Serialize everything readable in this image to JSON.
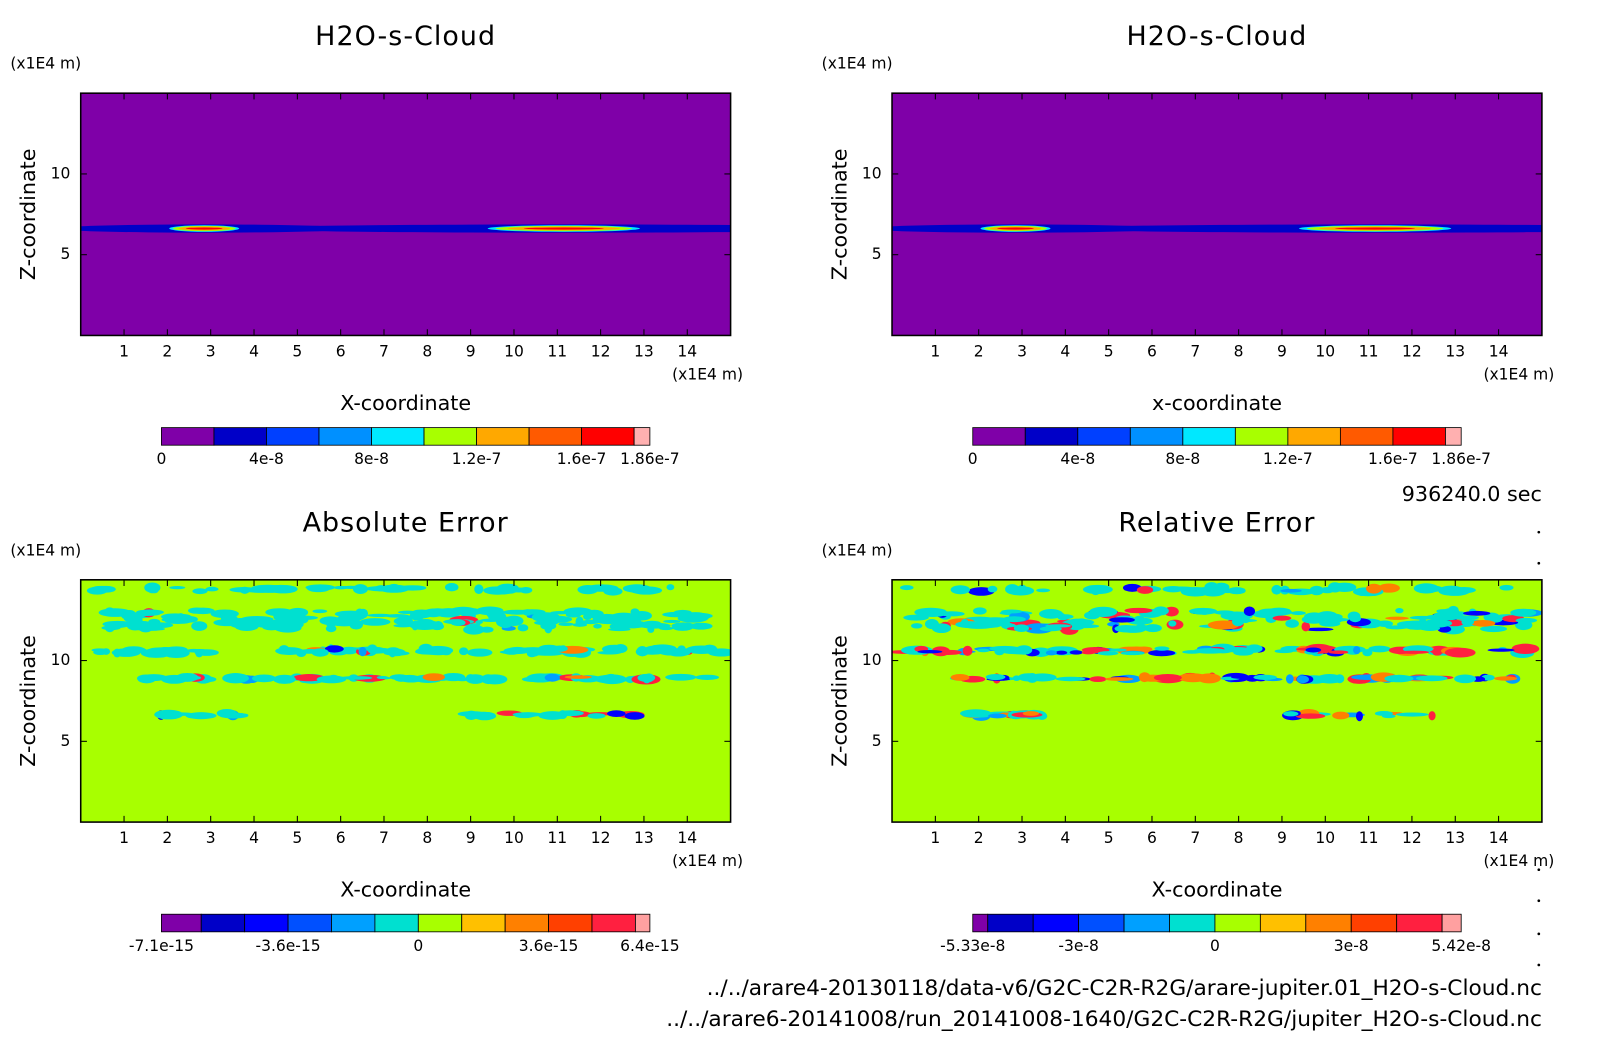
{
  "chart_data": [
    {
      "type": "contour",
      "title": "H2O-s-Cloud",
      "x_label": "X-coordinate",
      "y_label": "Z-coordinate",
      "x_unit": "(x1E4 m)",
      "y_unit": "(x1E4 m)",
      "xlim": [
        0,
        15
      ],
      "ylim": [
        0,
        15
      ],
      "xticks": [
        1,
        2,
        3,
        4,
        5,
        6,
        7,
        8,
        9,
        10,
        11,
        12,
        13,
        14
      ],
      "yticks": [
        5,
        10
      ],
      "colorbar": {
        "lim": [
          0,
          1.86e-07
        ],
        "ticks": [
          0,
          4e-08,
          8e-08,
          1.2e-07,
          1.6e-07,
          1.86e-07
        ],
        "levels": [
          0,
          2e-08,
          4e-08,
          6e-08,
          8e-08,
          1e-07,
          1.2e-07,
          1.4e-07,
          1.6e-07,
          1.8e-07,
          1.86e-07
        ],
        "colors": [
          "#7f00a8",
          "#0000c8",
          "#0040ff",
          "#0090ff",
          "#00e8ff",
          "#a8ff00",
          "#ffa800",
          "#ff5a00",
          "#ff0000",
          "#ffb0b0"
        ]
      }
    },
    {
      "type": "contour",
      "title": "H2O-s-Cloud",
      "x_label": "x-coordinate",
      "y_label": "Z-coordinate",
      "x_unit": "(x1E4 m)",
      "y_unit": "(x1E4 m)",
      "xlim": [
        0,
        15
      ],
      "ylim": [
        0,
        15
      ],
      "xticks": [
        1,
        2,
        3,
        4,
        5,
        6,
        7,
        8,
        9,
        10,
        11,
        12,
        13,
        14
      ],
      "yticks": [
        5,
        10
      ],
      "colorbar": {
        "lim": [
          0,
          1.86e-07
        ],
        "ticks": [
          0,
          4e-08,
          8e-08,
          1.2e-07,
          1.6e-07,
          1.86e-07
        ],
        "levels": [
          0,
          2e-08,
          4e-08,
          6e-08,
          8e-08,
          1e-07,
          1.2e-07,
          1.4e-07,
          1.6e-07,
          1.8e-07,
          1.86e-07
        ],
        "colors": [
          "#7f00a8",
          "#0000c8",
          "#0040ff",
          "#0090ff",
          "#00e8ff",
          "#a8ff00",
          "#ffa800",
          "#ff5a00",
          "#ff0000",
          "#ffb0b0"
        ]
      }
    },
    {
      "type": "contour",
      "title": "Absolute Error",
      "x_label": "X-coordinate",
      "y_label": "Z-coordinate",
      "x_unit": "(x1E4 m)",
      "y_unit": "(x1E4 m)",
      "xlim": [
        0,
        15
      ],
      "ylim": [
        0,
        15
      ],
      "xticks": [
        1,
        2,
        3,
        4,
        5,
        6,
        7,
        8,
        9,
        10,
        11,
        12,
        13,
        14
      ],
      "yticks": [
        5,
        10
      ],
      "colorbar": {
        "lim": [
          -7.1e-15,
          6.4e-15
        ],
        "ticks": [
          -7.1e-15,
          -3.6e-15,
          0,
          3.6e-15,
          6.4e-15
        ],
        "levels": [
          -7.1e-15,
          -6e-15,
          -4.8e-15,
          -3.6e-15,
          -2.4e-15,
          -1.2e-15,
          0,
          1.2e-15,
          2.4e-15,
          3.6e-15,
          4.8e-15,
          6e-15,
          6.4e-15
        ],
        "colors": [
          "#7f00a8",
          "#0000c8",
          "#0000ff",
          "#0050ff",
          "#00a0ff",
          "#00e0d0",
          "#a8ff00",
          "#ffc000",
          "#ff8000",
          "#ff4000",
          "#ff2040",
          "#ffa0a0"
        ]
      }
    },
    {
      "type": "contour",
      "title": "Relative Error",
      "x_label": "X-coordinate",
      "y_label": "Z-coordinate",
      "x_unit": "(x1E4 m)",
      "y_unit": "(x1E4 m)",
      "xlim": [
        0,
        15
      ],
      "ylim": [
        0,
        15
      ],
      "xticks": [
        1,
        2,
        3,
        4,
        5,
        6,
        7,
        8,
        9,
        10,
        11,
        12,
        13,
        14
      ],
      "yticks": [
        5,
        10
      ],
      "colorbar": {
        "lim": [
          -5.33e-08,
          5.42e-08
        ],
        "ticks": [
          -5.33e-08,
          -3e-08,
          0,
          3e-08,
          5.42e-08
        ],
        "levels": [
          -5.33e-08,
          -5e-08,
          -4e-08,
          -3e-08,
          -2e-08,
          -1e-08,
          0,
          1e-08,
          2e-08,
          3e-08,
          4e-08,
          5e-08,
          5.42e-08
        ],
        "colors": [
          "#7f00a8",
          "#0000c8",
          "#0000ff",
          "#0050ff",
          "#00a0ff",
          "#00e0d0",
          "#a8ff00",
          "#ffc000",
          "#ff8000",
          "#ff4000",
          "#ff2040",
          "#ffa0a0"
        ]
      }
    }
  ],
  "time": "936240.0 sec",
  "files": [
    "../../arare4-20130118/data-v6/G2C-C2R-R2G/arare-jupiter.01_H2O-s-Cloud.nc",
    "../../arare6-20141008/run_20141008-1640/G2C-C2R-R2G/jupiter_H2O-s-Cloud.nc"
  ]
}
